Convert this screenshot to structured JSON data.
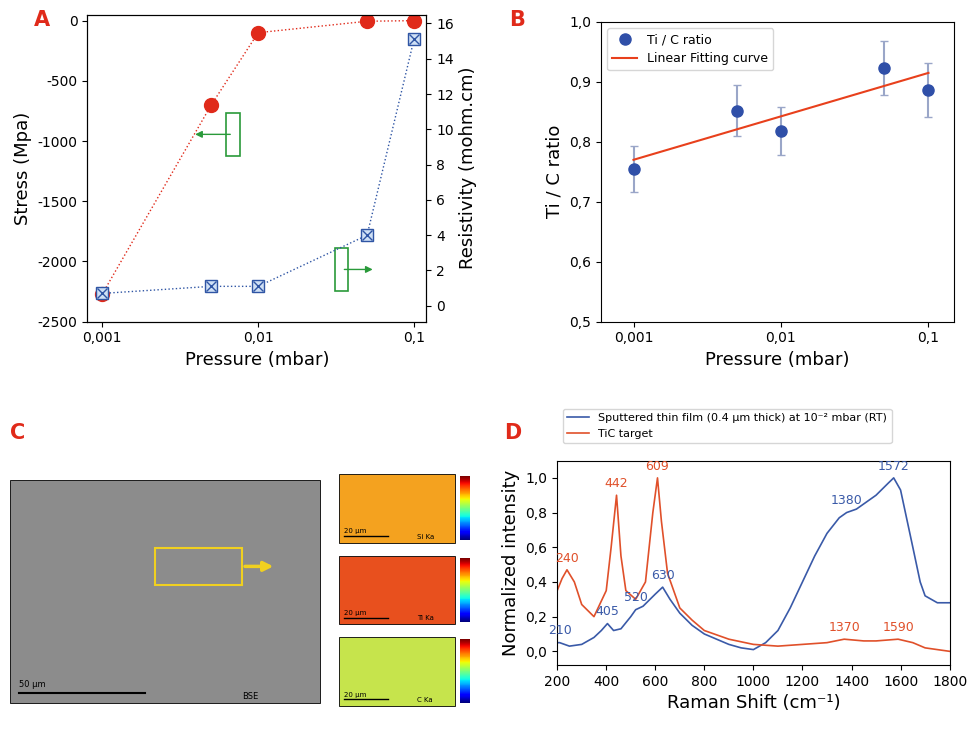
{
  "chart_data": [
    {
      "type": "line",
      "title": "A",
      "x_label": "Pressure (mbar)",
      "y_label": "Stress (Mpa)",
      "y2_label": "Resistivity (mohm.cm)",
      "log": "x",
      "xlim": [
        0.0008,
        0.12
      ],
      "xticks": [
        {
          "value": 0.001,
          "label": "0,001"
        },
        {
          "value": 0.01,
          "label": "0,01"
        },
        {
          "value": 0.1,
          "label": "0,1"
        }
      ],
      "ylim": [
        -2500,
        50
      ],
      "yticks": [
        -2500,
        -2000,
        -1500,
        -1000,
        -500,
        0
      ],
      "y2lim": [
        -0.9,
        16.5
      ],
      "y2ticks": [
        0,
        2,
        4,
        6,
        8,
        10,
        12,
        14,
        16
      ],
      "series": [
        {
          "name": "Stress",
          "color": "#e02a1a",
          "marker": "circle",
          "line_style": "dotted",
          "x": [
            0.001,
            0.005,
            0.01,
            0.05,
            0.1
          ],
          "values": [
            -2270,
            -700,
            -100,
            -5,
            0
          ]
        },
        {
          "name": "Resistivity",
          "color": "#2f55a4",
          "marker": "square_x",
          "line_style": "dotted",
          "axis": "y2",
          "x": [
            0.001,
            0.005,
            0.01,
            0.05,
            0.1
          ],
          "values": [
            0.7,
            1.1,
            1.1,
            4.0,
            15.1
          ]
        }
      ]
    },
    {
      "type": "scatter",
      "title": "B",
      "x_label": "Pressure (mbar)",
      "y_label": "Ti / C ratio",
      "log": "x",
      "xlim": [
        0.0006,
        0.15
      ],
      "xticks": [
        {
          "value": 0.001,
          "label": "0,001"
        },
        {
          "value": 0.01,
          "label": "0,01"
        },
        {
          "value": 0.1,
          "label": "0,1"
        }
      ],
      "ylim": [
        0.5,
        1.0
      ],
      "yticks": [
        {
          "value": 0.5,
          "label": "0,5"
        },
        {
          "value": 0.6,
          "label": "0,6"
        },
        {
          "value": 0.7,
          "label": "0,7"
        },
        {
          "value": 0.8,
          "label": "0,8"
        },
        {
          "value": 0.9,
          "label": "0,9"
        },
        {
          "value": 1.0,
          "label": "1,0"
        }
      ],
      "legend": "upper left",
      "series": [
        {
          "name": "Ti / C ratio",
          "type": "scatter",
          "color": "#2f4fa8",
          "marker": "circle",
          "x": [
            0.001,
            0.005,
            0.01,
            0.05,
            0.1
          ],
          "values": [
            0.755,
            0.852,
            0.818,
            0.923,
            0.887
          ],
          "errors": [
            0.038,
            0.042,
            0.04,
            0.045,
            0.045
          ]
        },
        {
          "name": "Linear Fitting curve",
          "type": "line",
          "color": "#e8401c",
          "line_style": "solid",
          "x": [
            0.001,
            0.1
          ],
          "values": [
            0.77,
            0.915
          ]
        }
      ]
    },
    {
      "type": "image",
      "title": "C",
      "panels": [
        "BSE",
        "Si Ka",
        "Ti Ka",
        "C Ka"
      ],
      "scale_bars": [
        "50 µm",
        "20 µm",
        "20 µm",
        "20 µm"
      ],
      "colors": [
        "#8c8c8c",
        "#f4a21f",
        "#e8501e",
        "#c6e44c"
      ]
    },
    {
      "type": "line",
      "title": "D",
      "x_label": "Raman Shift (cm⁻¹)",
      "y_label": "Normalized intensity",
      "xlim": [
        200,
        1800
      ],
      "xticks": [
        200,
        400,
        600,
        800,
        1000,
        1200,
        1400,
        1600,
        1800
      ],
      "ylim": [
        -0.08,
        1.1
      ],
      "yticks": [
        {
          "value": 0.0,
          "label": "0,0"
        },
        {
          "value": 0.2,
          "label": "0,2"
        },
        {
          "value": 0.4,
          "label": "0,4"
        },
        {
          "value": 0.6,
          "label": "0,6"
        },
        {
          "value": 0.8,
          "label": "0,8"
        },
        {
          "value": 1.0,
          "label": "1,0"
        }
      ],
      "legend": "upper left",
      "series": [
        {
          "name": "Sputtered thin film (0.4 µm thick) at 10⁻² mbar (RT)",
          "color": "#3a5aa8",
          "line_style": "solid",
          "x": [
            200,
            210,
            250,
            300,
            350,
            380,
            405,
            430,
            460,
            500,
            520,
            550,
            600,
            630,
            660,
            700,
            750,
            800,
            850,
            900,
            950,
            1000,
            1050,
            1100,
            1150,
            1200,
            1250,
            1300,
            1350,
            1380,
            1420,
            1450,
            1500,
            1550,
            1572,
            1600,
            1650,
            1680,
            1700,
            1750,
            1800
          ],
          "values": [
            0.05,
            0.05,
            0.03,
            0.04,
            0.08,
            0.12,
            0.16,
            0.12,
            0.13,
            0.2,
            0.24,
            0.26,
            0.33,
            0.37,
            0.3,
            0.22,
            0.15,
            0.1,
            0.07,
            0.04,
            0.02,
            0.01,
            0.05,
            0.12,
            0.25,
            0.4,
            0.55,
            0.68,
            0.77,
            0.8,
            0.82,
            0.85,
            0.9,
            0.97,
            1.0,
            0.93,
            0.6,
            0.4,
            0.32,
            0.28,
            0.28
          ],
          "peak_labels": [
            210,
            405,
            520,
            630,
            1380,
            1572
          ]
        },
        {
          "name": "TiC target",
          "color": "#e0502a",
          "line_style": "solid",
          "x": [
            200,
            220,
            240,
            270,
            300,
            350,
            400,
            420,
            442,
            460,
            480,
            520,
            560,
            590,
            609,
            625,
            650,
            700,
            750,
            800,
            900,
            1000,
            1100,
            1200,
            1300,
            1370,
            1450,
            1500,
            1590,
            1650,
            1700,
            1800
          ],
          "values": [
            0.35,
            0.42,
            0.47,
            0.4,
            0.27,
            0.2,
            0.35,
            0.6,
            0.9,
            0.55,
            0.35,
            0.3,
            0.4,
            0.8,
            1.0,
            0.75,
            0.45,
            0.25,
            0.18,
            0.12,
            0.07,
            0.04,
            0.03,
            0.04,
            0.05,
            0.07,
            0.06,
            0.06,
            0.07,
            0.05,
            0.02,
            0.0
          ],
          "peak_labels": [
            240,
            442,
            609,
            1370,
            1590
          ]
        }
      ]
    }
  ]
}
